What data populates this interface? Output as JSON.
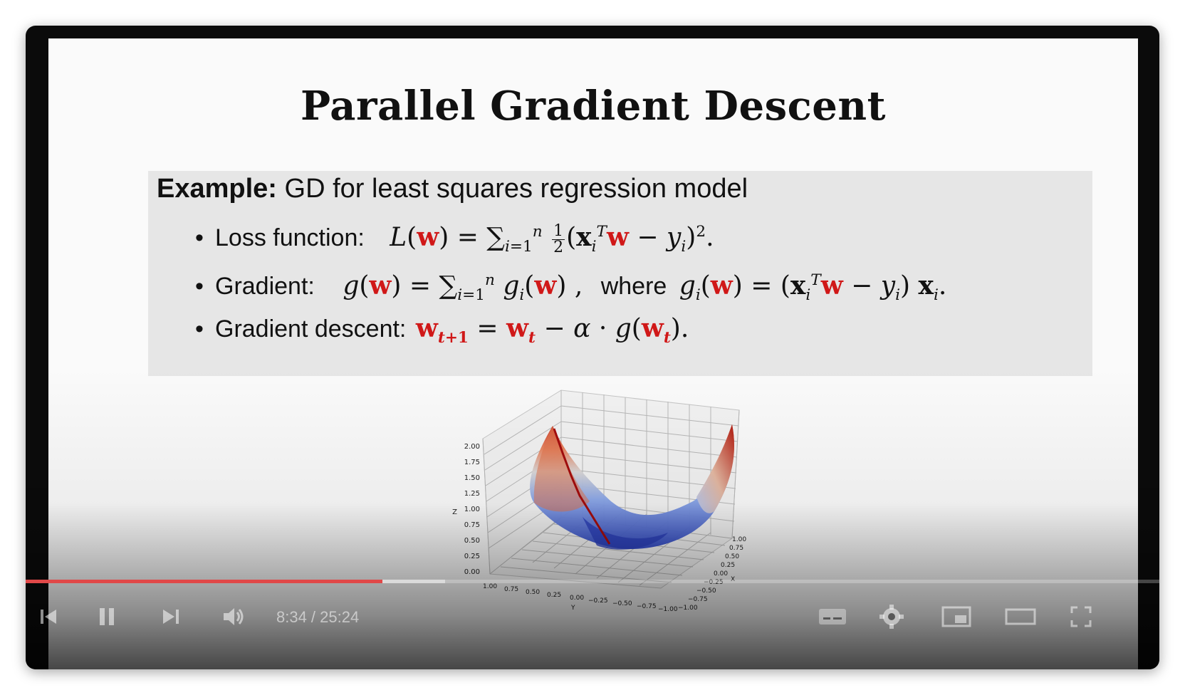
{
  "slide": {
    "title": "Parallel Gradient Descent",
    "example_label": "Example:",
    "example_text": " GD for least squares regression model",
    "bullets": [
      {
        "label": "Loss function:"
      },
      {
        "label": "Gradient:",
        "connector": "where"
      },
      {
        "label": "Gradient descent:"
      }
    ]
  },
  "plot": {
    "z_axis_label": "Z",
    "x_axis_label": "X",
    "y_axis_label": "Y",
    "z_ticks": [
      "2.00",
      "1.75",
      "1.50",
      "1.25",
      "1.00",
      "0.75",
      "0.50",
      "0.25",
      "0.00"
    ],
    "y_ticks": [
      "1.00",
      "0.75",
      "0.50",
      "0.25",
      "0.00",
      "−0.25",
      "−0.50",
      "−0.75",
      "−1.00"
    ],
    "x_ticks": [
      "1.00",
      "0.75",
      "0.50",
      "0.25",
      "0.00",
      "−0.25",
      "−0.50",
      "−0.75",
      "−1.00"
    ],
    "colors": {
      "low": "#3b5bd6",
      "mid": "#dcdcdc",
      "high": "#c8301e",
      "path": "#b01010"
    }
  },
  "player": {
    "played_fraction": 0.315,
    "buffered_fraction": 0.37,
    "time_display": "8:34 / 25:24",
    "icons": [
      "skip-back-icon",
      "pause-icon",
      "skip-next-icon",
      "volume-icon",
      "captions-icon",
      "settings-icon",
      "miniplayer-icon",
      "theater-icon",
      "fullscreen-icon"
    ]
  }
}
